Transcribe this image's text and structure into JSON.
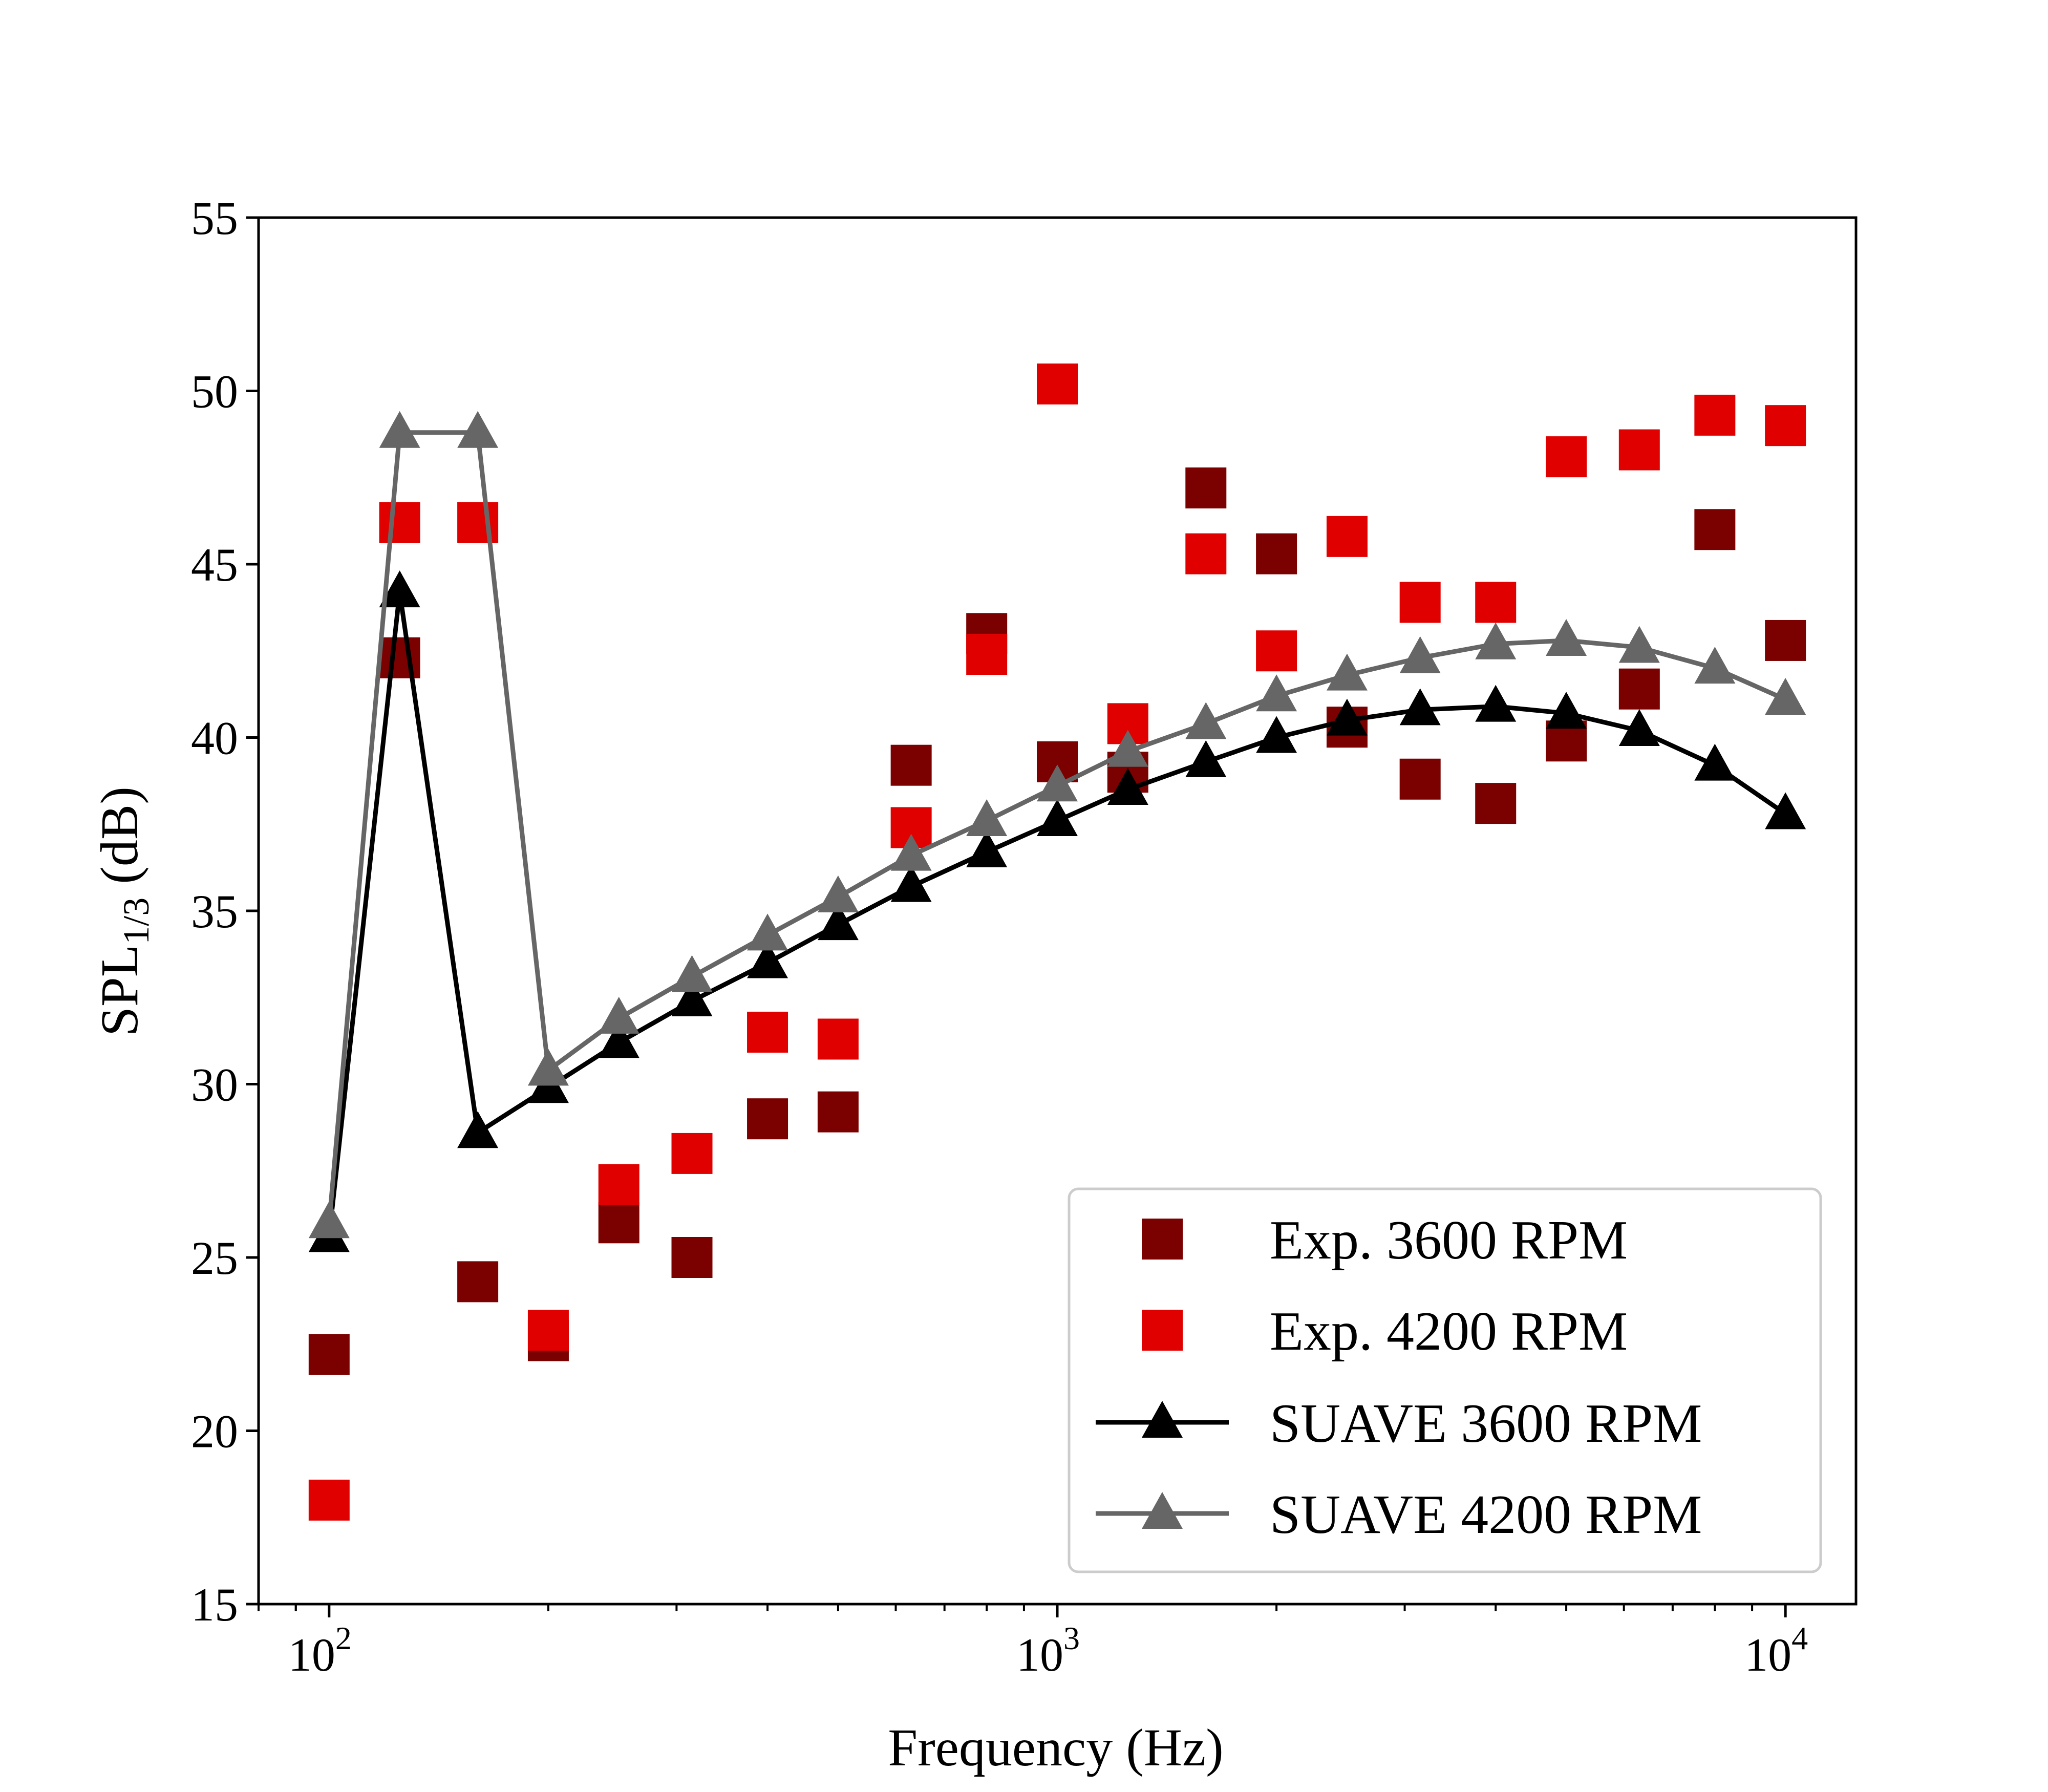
{
  "chart_data": {
    "type": "scatter",
    "title": "",
    "xlabel": "Frequency (Hz)",
    "ylabel": {
      "main": "SPL",
      "sub": "1/3",
      "unit": " (dB)"
    },
    "xscale": "log",
    "xlim": [
      80,
      12500
    ],
    "ylim": [
      15,
      55
    ],
    "yticks": [
      15,
      20,
      25,
      30,
      35,
      40,
      45,
      50,
      55
    ],
    "xticks": [
      {
        "value": 100,
        "base": "10",
        "exp": "2"
      },
      {
        "value": 1000,
        "base": "10",
        "exp": "3"
      },
      {
        "value": 10000,
        "base": "10",
        "exp": "4"
      }
    ],
    "grid": false,
    "legend_position": "lower-right",
    "x": [
      100,
      125,
      160,
      200,
      250,
      315,
      400,
      500,
      630,
      800,
      1000,
      1250,
      1600,
      2000,
      2500,
      3150,
      4000,
      5000,
      6300,
      8000,
      10000
    ],
    "series": [
      {
        "name": "Exp. 3600 RPM",
        "kind": "marker",
        "marker": "square",
        "color": "#7b0000",
        "values": [
          22.2,
          42.3,
          24.3,
          22.6,
          26.0,
          25.0,
          29.0,
          29.2,
          39.2,
          43.0,
          39.3,
          39.0,
          47.2,
          45.3,
          40.3,
          38.8,
          38.1,
          39.9,
          41.4,
          46.0,
          42.8
        ]
      },
      {
        "name": "Exp. 4200 RPM",
        "kind": "marker",
        "marker": "square",
        "color": "#e00000",
        "values": [
          18.0,
          46.2,
          46.2,
          22.9,
          27.1,
          28.0,
          31.5,
          31.3,
          37.4,
          42.4,
          50.2,
          40.4,
          45.3,
          42.5,
          45.8,
          43.9,
          43.9,
          48.1,
          48.3,
          49.3,
          49.0
        ]
      },
      {
        "name": " SUAVE 3600 RPM",
        "kind": "line",
        "marker": "triangle",
        "color": "#000000",
        "values": [
          25.6,
          44.2,
          28.6,
          29.9,
          31.2,
          32.4,
          33.5,
          34.6,
          35.7,
          36.7,
          37.6,
          38.5,
          39.3,
          40.0,
          40.5,
          40.8,
          40.9,
          40.7,
          40.2,
          39.2,
          37.8
        ]
      },
      {
        "name": " SUAVE 4200 RPM",
        "kind": "line",
        "marker": "triangle",
        "color": "#666666",
        "values": [
          26.0,
          48.8,
          48.8,
          30.4,
          31.9,
          33.1,
          34.3,
          35.4,
          36.6,
          37.6,
          38.6,
          39.6,
          40.4,
          41.2,
          41.8,
          42.3,
          42.7,
          42.8,
          42.6,
          42.0,
          41.1
        ]
      }
    ]
  }
}
